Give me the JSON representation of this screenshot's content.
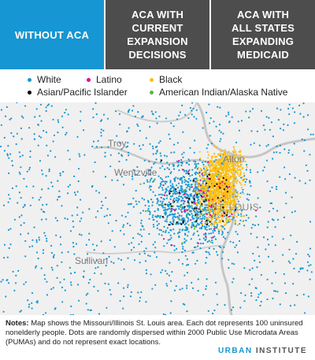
{
  "tabs": [
    {
      "id": "without",
      "label": "WITHOUT ACA",
      "active": true
    },
    {
      "id": "current",
      "label": "ACA WITH\nCURRENT\nEXPANSION\nDECISIONS",
      "active": false
    },
    {
      "id": "all",
      "label": "ACA WITH\nALL STATES\nEXPANDING\nMEDICAID",
      "active": false
    }
  ],
  "legend": [
    {
      "label": "White",
      "color": "#1696d2"
    },
    {
      "label": "Latino",
      "color": "#ec008b"
    },
    {
      "label": "Black",
      "color": "#fdbf11"
    },
    {
      "label": "Asian/Pacific Islander",
      "color": "#000000"
    },
    {
      "label": "American Indian/Alaska Native",
      "color": "#55b748"
    }
  ],
  "map": {
    "places": [
      {
        "name": "Troy",
        "kind": "town"
      },
      {
        "name": "Wentzville",
        "kind": "town"
      },
      {
        "name": "Alton",
        "kind": "town"
      },
      {
        "name": "ST. LOUIS",
        "kind": "city"
      },
      {
        "name": "Sullivan",
        "kind": "town"
      }
    ]
  },
  "notes": {
    "label": "Notes:",
    "text": " Map shows the Missouri/Illinois St. Louis area. Each dot represents 100 uninsured nonelderly people. Dots are randomly dispersed within 2000 Public Use Microdata Areas (PUMAs) and do not represent exact locations."
  },
  "brand": {
    "urban": "URBAN",
    "institute": "INSTITUTE"
  }
}
